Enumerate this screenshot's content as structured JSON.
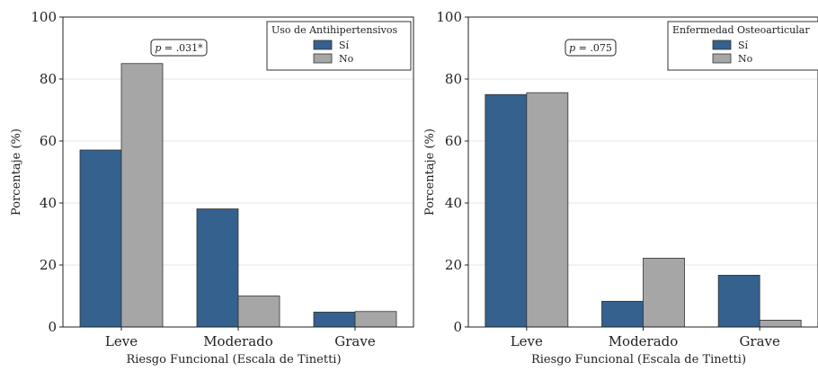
{
  "colors": {
    "si": "#34618e",
    "no": "#a6a6a6",
    "bar_edge": "#333333"
  },
  "chart_data": [
    {
      "type": "bar",
      "categories": [
        "Leve",
        "Moderado",
        "Grave"
      ],
      "series": [
        {
          "name": "Sí",
          "values": [
            57.1,
            38.1,
            4.8
          ]
        },
        {
          "name": "No",
          "values": [
            85.0,
            10.0,
            5.0
          ]
        }
      ],
      "title": "",
      "xlabel": "Riesgo Funcional (Escala de Tinetti)",
      "ylabel": "Porcentaje (%)",
      "ylim": [
        0,
        100
      ],
      "yticks": [
        0,
        20,
        40,
        60,
        80,
        100
      ],
      "grid": "horizontal",
      "legend_title": "Uso de Antihipertensivos",
      "legend_position": "top-right",
      "annotation": {
        "italic": "p",
        "rest": " = .031*"
      }
    },
    {
      "type": "bar",
      "categories": [
        "Leve",
        "Moderado",
        "Grave"
      ],
      "series": [
        {
          "name": "Sí",
          "values": [
            75.0,
            8.3,
            16.7
          ]
        },
        {
          "name": "No",
          "values": [
            75.6,
            22.2,
            2.2
          ]
        }
      ],
      "title": "",
      "xlabel": "Riesgo Funcional (Escala de Tinetti)",
      "ylabel": "Porcentaje (%)",
      "ylim": [
        0,
        100
      ],
      "yticks": [
        0,
        20,
        40,
        60,
        80,
        100
      ],
      "grid": "horizontal",
      "legend_title": "Enfermedad Osteoarticular",
      "legend_position": "top-right",
      "annotation": {
        "italic": "p",
        "rest": " = .075"
      }
    }
  ]
}
